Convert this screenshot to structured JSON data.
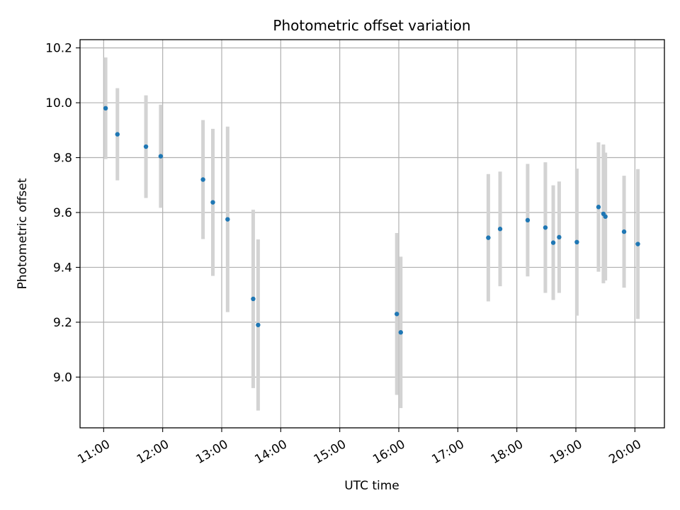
{
  "chart_data": {
    "type": "scatter",
    "title": "Photometric offset variation",
    "xlabel": "UTC time",
    "ylabel": "Photometric offset",
    "x_type": "time",
    "xlim": [
      "10:36",
      "20:30"
    ],
    "ylim": [
      8.815,
      10.23
    ],
    "xticks": [
      "11:00",
      "12:00",
      "13:00",
      "14:00",
      "15:00",
      "16:00",
      "17:00",
      "18:00",
      "19:00",
      "20:00"
    ],
    "yticks": [
      "9.0",
      "9.2",
      "9.4",
      "9.6",
      "9.8",
      "10.0",
      "10.2"
    ],
    "grid": true,
    "colors": {
      "points": "#1f77b4",
      "errorbars": "#d3d3d3",
      "grid": "#b0b0b0"
    },
    "series": [
      {
        "x": [
          "11:02",
          "11:14",
          "11:43",
          "11:58",
          "12:41",
          "12:51",
          "13:06",
          "13:32",
          "13:37",
          "15:58",
          "16:02",
          "17:31",
          "17:43",
          "18:11",
          "18:29",
          "18:37",
          "18:43",
          "19:01",
          "19:23",
          "19:28",
          "19:30",
          "19:49",
          "20:03"
        ],
        "y": [
          9.98,
          9.885,
          9.84,
          9.805,
          9.72,
          9.637,
          9.575,
          9.285,
          9.19,
          9.23,
          9.163,
          9.508,
          9.54,
          9.572,
          9.545,
          9.49,
          9.51,
          9.492,
          9.62,
          9.595,
          9.585,
          9.53,
          9.485
        ],
        "yerr": [
          0.185,
          0.168,
          0.187,
          0.188,
          0.217,
          0.268,
          0.338,
          0.325,
          0.312,
          0.295,
          0.276,
          0.232,
          0.209,
          0.205,
          0.238,
          0.209,
          0.203,
          0.268,
          0.236,
          0.253,
          0.233,
          0.204,
          0.273
        ]
      }
    ]
  }
}
